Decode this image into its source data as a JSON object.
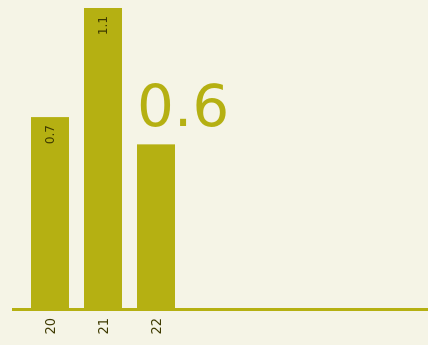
{
  "chart_data": {
    "type": "bar",
    "categories": [
      "20",
      "21",
      "22"
    ],
    "values": [
      0.7,
      1.1,
      0.6
    ],
    "data_labels": [
      "0.7",
      "1.1",
      ""
    ],
    "highlight_value": "0.6",
    "ylim": [
      0,
      1.1
    ],
    "grid": false,
    "legend": "none",
    "colors": {
      "bar": "#b5b012",
      "background": "#f5f4e6",
      "text": "#3e3a00"
    }
  }
}
